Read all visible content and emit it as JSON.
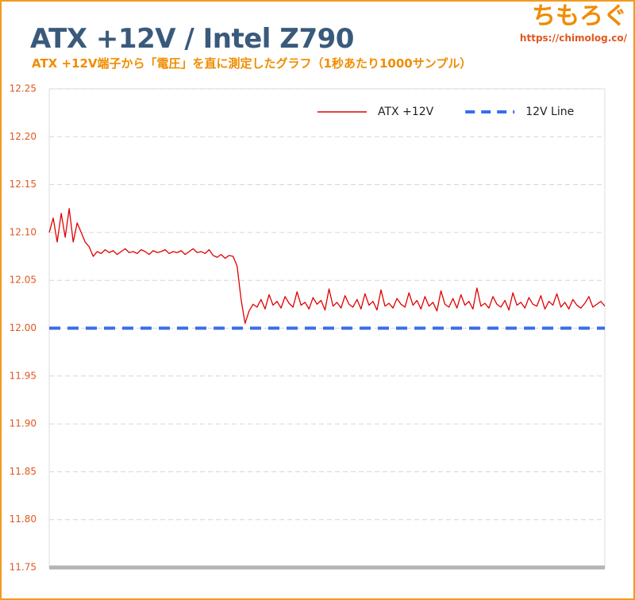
{
  "chart_data": {
    "type": "line",
    "title": "ATX +12V / Intel Z790",
    "subtitle": "ATX +12V端子から「電圧」を直に測定したグラフ（1秒あたり1000サンプル）",
    "logo": "ちもろぐ",
    "url": "https://chimolog.co/",
    "ylim": [
      11.75,
      12.25
    ],
    "yticks": [
      11.75,
      {
        "value": 11.8,
        "label": "11.80"
      },
      11.85,
      {
        "value": 11.9,
        "label": "11.90"
      },
      11.95,
      {
        "value": 12,
        "label": "12.00"
      },
      12.05,
      {
        "value": 12.1,
        "label": "12.10"
      },
      12.15,
      {
        "value": 12.2,
        "label": "12.20"
      },
      12.25
    ],
    "grid": true,
    "legend": "top-right",
    "series": [
      {
        "name": "ATX +12V",
        "color": "#e00000",
        "values": [
          12.1,
          12.115,
          12.09,
          12.12,
          12.095,
          12.125,
          12.09,
          12.11,
          12.1,
          12.09,
          12.085,
          12.075,
          12.08,
          12.078,
          12.082,
          12.079,
          12.081,
          12.077,
          12.08,
          12.083,
          12.079,
          12.08,
          12.078,
          12.082,
          12.08,
          12.077,
          12.081,
          12.079,
          12.08,
          12.082,
          12.078,
          12.08,
          12.079,
          12.081,
          12.077,
          12.08,
          12.083,
          12.079,
          12.08,
          12.078,
          12.082,
          12.076,
          12.074,
          12.077,
          12.073,
          12.076,
          12.075,
          12.065,
          12.03,
          12.005,
          12.018,
          12.025,
          12.022,
          12.03,
          12.02,
          12.035,
          12.024,
          12.028,
          12.021,
          12.033,
          12.026,
          12.022,
          12.038,
          12.024,
          12.027,
          12.02,
          12.032,
          12.025,
          12.029,
          12.019,
          12.041,
          12.023,
          12.027,
          12.021,
          12.034,
          12.025,
          12.022,
          12.03,
          12.02,
          12.036,
          12.024,
          12.028,
          12.019,
          12.04,
          12.023,
          12.026,
          12.021,
          12.031,
          12.025,
          12.022,
          12.037,
          12.024,
          12.029,
          12.02,
          12.033,
          12.023,
          12.027,
          12.018,
          12.039,
          12.025,
          12.022,
          12.031,
          12.021,
          12.035,
          12.024,
          12.028,
          12.02,
          12.042,
          12.023,
          12.026,
          12.021,
          12.033,
          12.025,
          12.022,
          12.029,
          12.019,
          12.037,
          12.024,
          12.027,
          12.021,
          12.032,
          12.025,
          12.023,
          12.034,
          12.02,
          12.028,
          12.024,
          12.036,
          12.022,
          12.027,
          12.02,
          12.03,
          12.024,
          12.021,
          12.026,
          12.033,
          12.022,
          12.025,
          12.028,
          12.023
        ]
      }
    ],
    "hlines": [
      {
        "name": "12V Line",
        "color": "#3a6ee8",
        "value": 12,
        "dash": true
      }
    ]
  }
}
